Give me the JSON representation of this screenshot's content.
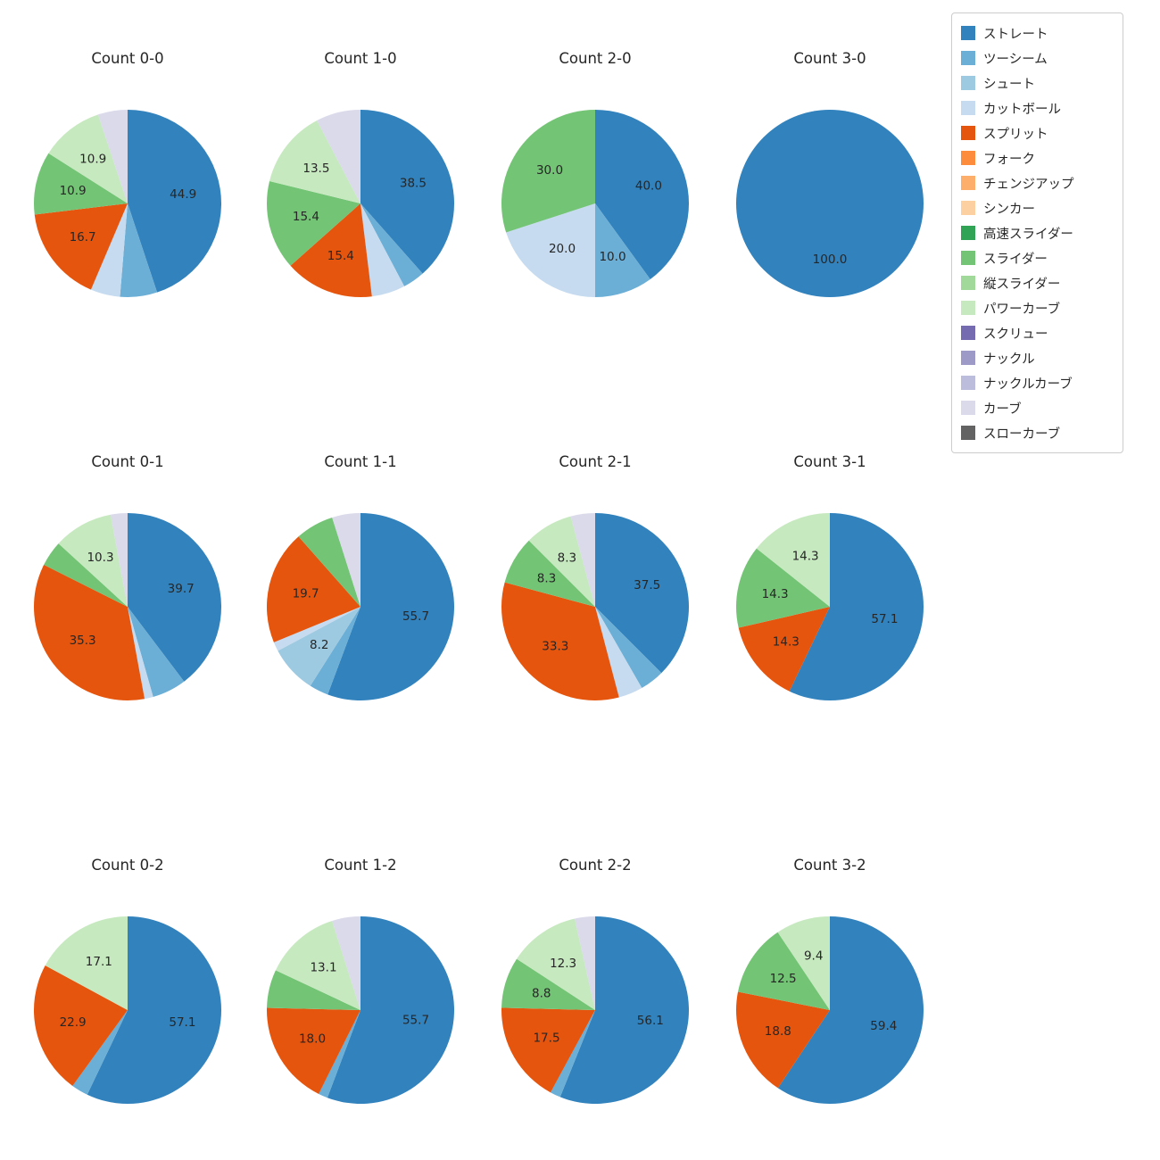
{
  "page": {
    "background": "#ffffff",
    "text_color": "#262626"
  },
  "legend": {
    "items": [
      {
        "label": "ストレート",
        "color": "#3182bd"
      },
      {
        "label": "ツーシーム",
        "color": "#6baed6"
      },
      {
        "label": "シュート",
        "color": "#9ecae1"
      },
      {
        "label": "カットボール",
        "color": "#c6dbef"
      },
      {
        "label": "スプリット",
        "color": "#e6550d"
      },
      {
        "label": "フォーク",
        "color": "#fd8d3c"
      },
      {
        "label": "チェンジアップ",
        "color": "#fdae6b"
      },
      {
        "label": "シンカー",
        "color": "#fdd0a2"
      },
      {
        "label": "高速スライダー",
        "color": "#31a354"
      },
      {
        "label": "スライダー",
        "color": "#74c476"
      },
      {
        "label": "縦スライダー",
        "color": "#a1d99b"
      },
      {
        "label": "パワーカーブ",
        "color": "#c7e9c0"
      },
      {
        "label": "スクリュー",
        "color": "#756bb1"
      },
      {
        "label": "ナックル",
        "color": "#9e9ac8"
      },
      {
        "label": "ナックルカーブ",
        "color": "#bcbddc"
      },
      {
        "label": "カーブ",
        "color": "#dadaeb"
      },
      {
        "label": "スローカーブ",
        "color": "#636363"
      }
    ]
  },
  "chart_data": [
    {
      "type": "pie",
      "title": "Count 0-0",
      "start_angle": 90,
      "direction": "clockwise",
      "slices": [
        {
          "name": "ストレート",
          "value": 44.9,
          "label": "44.9"
        },
        {
          "name": "ツーシーム",
          "value": 6.4,
          "label": ""
        },
        {
          "name": "カットボール",
          "value": 5.1,
          "label": ""
        },
        {
          "name": "スプリット",
          "value": 16.7,
          "label": "16.7"
        },
        {
          "name": "スライダー",
          "value": 10.9,
          "label": "10.9"
        },
        {
          "name": "パワーカーブ",
          "value": 10.9,
          "label": "10.9"
        },
        {
          "name": "カーブ",
          "value": 5.1,
          "label": ""
        }
      ]
    },
    {
      "type": "pie",
      "title": "Count 1-0",
      "start_angle": 90,
      "direction": "clockwise",
      "slices": [
        {
          "name": "ストレート",
          "value": 38.5,
          "label": "38.5"
        },
        {
          "name": "ツーシーム",
          "value": 3.8,
          "label": ""
        },
        {
          "name": "カットボール",
          "value": 5.8,
          "label": ""
        },
        {
          "name": "スプリット",
          "value": 15.4,
          "label": "15.4"
        },
        {
          "name": "スライダー",
          "value": 15.4,
          "label": "15.4"
        },
        {
          "name": "パワーカーブ",
          "value": 13.5,
          "label": "13.5"
        },
        {
          "name": "カーブ",
          "value": 7.7,
          "label": ""
        }
      ]
    },
    {
      "type": "pie",
      "title": "Count 2-0",
      "start_angle": 90,
      "direction": "clockwise",
      "slices": [
        {
          "name": "ストレート",
          "value": 40.0,
          "label": "40.0"
        },
        {
          "name": "ツーシーム",
          "value": 10.0,
          "label": "10.0"
        },
        {
          "name": "カットボール",
          "value": 20.0,
          "label": "20.0"
        },
        {
          "name": "スライダー",
          "value": 30.0,
          "label": "30.0"
        }
      ]
    },
    {
      "type": "pie",
      "title": "Count 3-0",
      "start_angle": 90,
      "direction": "clockwise",
      "slices": [
        {
          "name": "ストレート",
          "value": 100.0,
          "label": "100.0"
        }
      ]
    },
    {
      "type": "pie",
      "title": "Count 0-1",
      "start_angle": 90,
      "direction": "clockwise",
      "slices": [
        {
          "name": "ストレート",
          "value": 39.7,
          "label": "39.7"
        },
        {
          "name": "ツーシーム",
          "value": 5.9,
          "label": ""
        },
        {
          "name": "カットボール",
          "value": 1.5,
          "label": ""
        },
        {
          "name": "スプリット",
          "value": 35.3,
          "label": "35.3"
        },
        {
          "name": "スライダー",
          "value": 4.4,
          "label": ""
        },
        {
          "name": "パワーカーブ",
          "value": 10.3,
          "label": "10.3"
        },
        {
          "name": "カーブ",
          "value": 2.9,
          "label": ""
        }
      ]
    },
    {
      "type": "pie",
      "title": "Count 1-1",
      "start_angle": 90,
      "direction": "clockwise",
      "slices": [
        {
          "name": "ストレート",
          "value": 55.7,
          "label": "55.7"
        },
        {
          "name": "ツーシーム",
          "value": 3.3,
          "label": ""
        },
        {
          "name": "シュート",
          "value": 8.2,
          "label": "8.2"
        },
        {
          "name": "カットボール",
          "value": 1.6,
          "label": ""
        },
        {
          "name": "スプリット",
          "value": 19.7,
          "label": "19.7"
        },
        {
          "name": "スライダー",
          "value": 6.6,
          "label": ""
        },
        {
          "name": "カーブ",
          "value": 4.9,
          "label": ""
        }
      ]
    },
    {
      "type": "pie",
      "title": "Count 2-1",
      "start_angle": 90,
      "direction": "clockwise",
      "slices": [
        {
          "name": "ストレート",
          "value": 37.5,
          "label": "37.5"
        },
        {
          "name": "ツーシーム",
          "value": 4.2,
          "label": ""
        },
        {
          "name": "カットボール",
          "value": 4.2,
          "label": ""
        },
        {
          "name": "スプリット",
          "value": 33.3,
          "label": "33.3"
        },
        {
          "name": "スライダー",
          "value": 8.3,
          "label": "8.3"
        },
        {
          "name": "パワーカーブ",
          "value": 8.3,
          "label": "8.3"
        },
        {
          "name": "カーブ",
          "value": 4.2,
          "label": ""
        }
      ]
    },
    {
      "type": "pie",
      "title": "Count 3-1",
      "start_angle": 90,
      "direction": "clockwise",
      "slices": [
        {
          "name": "ストレート",
          "value": 57.1,
          "label": "57.1"
        },
        {
          "name": "スプリット",
          "value": 14.3,
          "label": "14.3"
        },
        {
          "name": "スライダー",
          "value": 14.3,
          "label": "14.3"
        },
        {
          "name": "パワーカーブ",
          "value": 14.3,
          "label": "14.3"
        }
      ]
    },
    {
      "type": "pie",
      "title": "Count 0-2",
      "start_angle": 90,
      "direction": "clockwise",
      "slices": [
        {
          "name": "ストレート",
          "value": 57.1,
          "label": "57.1"
        },
        {
          "name": "ツーシーム",
          "value": 2.9,
          "label": ""
        },
        {
          "name": "スプリット",
          "value": 22.9,
          "label": "22.9"
        },
        {
          "name": "パワーカーブ",
          "value": 17.1,
          "label": "17.1"
        }
      ]
    },
    {
      "type": "pie",
      "title": "Count 1-2",
      "start_angle": 90,
      "direction": "clockwise",
      "slices": [
        {
          "name": "ストレート",
          "value": 55.7,
          "label": "55.7"
        },
        {
          "name": "ツーシーム",
          "value": 1.6,
          "label": ""
        },
        {
          "name": "スプリット",
          "value": 18.0,
          "label": "18.0"
        },
        {
          "name": "スライダー",
          "value": 6.6,
          "label": ""
        },
        {
          "name": "パワーカーブ",
          "value": 13.1,
          "label": "13.1"
        },
        {
          "name": "カーブ",
          "value": 4.9,
          "label": ""
        }
      ]
    },
    {
      "type": "pie",
      "title": "Count 2-2",
      "start_angle": 90,
      "direction": "clockwise",
      "slices": [
        {
          "name": "ストレート",
          "value": 56.1,
          "label": "56.1"
        },
        {
          "name": "ツーシーム",
          "value": 1.8,
          "label": ""
        },
        {
          "name": "スプリット",
          "value": 17.5,
          "label": "17.5"
        },
        {
          "name": "スライダー",
          "value": 8.8,
          "label": "8.8"
        },
        {
          "name": "パワーカーブ",
          "value": 12.3,
          "label": "12.3"
        },
        {
          "name": "カーブ",
          "value": 3.5,
          "label": ""
        }
      ]
    },
    {
      "type": "pie",
      "title": "Count 3-2",
      "start_angle": 90,
      "direction": "clockwise",
      "slices": [
        {
          "name": "ストレート",
          "value": 59.4,
          "label": "59.4"
        },
        {
          "name": "スプリット",
          "value": 18.8,
          "label": "18.8"
        },
        {
          "name": "スライダー",
          "value": 12.5,
          "label": "12.5"
        },
        {
          "name": "パワーカーブ",
          "value": 9.4,
          "label": "9.4"
        }
      ]
    }
  ]
}
